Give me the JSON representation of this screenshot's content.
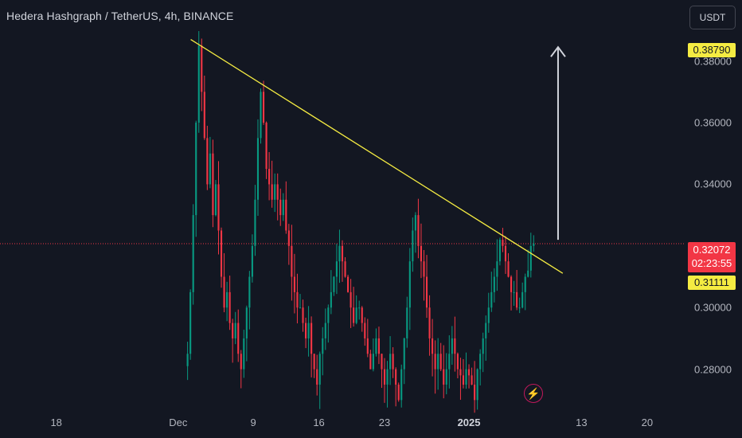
{
  "header": {
    "title": "Hedera Hashgraph / TetherUS, 4h, BINANCE",
    "currency": "USDT"
  },
  "colors": {
    "background": "#131722",
    "up": "#089981",
    "down": "#f23645",
    "trendline": "#f5ec42",
    "arrow": "#d1d4dc",
    "price_line": "#f23645"
  },
  "tags": {
    "high": "0.38790",
    "last_price": "0.32072",
    "countdown": "02:23:55",
    "trendline_value": "0.31111"
  },
  "icons": {
    "flash": "lightning-bolt-icon"
  },
  "chart_data": {
    "type": "candlestick",
    "symbol": "HBAR/USDT",
    "interval": "4h",
    "exchange": "BINANCE",
    "y_ticks": [
      "0.38000",
      "0.36000",
      "0.34000",
      "0.30000",
      "0.28000"
    ],
    "y_tick_values": [
      0.38,
      0.36,
      0.34,
      0.3,
      0.28
    ],
    "ylim": [
      0.2675,
      0.3998
    ],
    "x_ticks": [
      {
        "label": "18",
        "date": "2024-11-18",
        "bold": false
      },
      {
        "label": "Dec",
        "date": "2024-12-01",
        "bold": false
      },
      {
        "label": "9",
        "date": "2024-12-09",
        "bold": false
      },
      {
        "label": "16",
        "date": "2024-12-16",
        "bold": false
      },
      {
        "label": "23",
        "date": "2024-12-23",
        "bold": false
      },
      {
        "label": "2025",
        "date": "2025-01-01",
        "bold": true
      },
      {
        "label": "13",
        "date": "2025-01-13",
        "bold": false
      },
      {
        "label": "20",
        "date": "2025-01-20",
        "bold": false
      }
    ],
    "xlim": [
      "2024-11-12",
      "2025-01-24"
    ],
    "candles_start": "2024-12-02",
    "candle_interval_hours": 4,
    "closes": [
      0.285,
      0.305,
      0.33,
      0.36,
      0.385,
      0.37,
      0.355,
      0.34,
      0.35,
      0.33,
      0.34,
      0.325,
      0.31,
      0.3,
      0.305,
      0.295,
      0.29,
      0.295,
      0.285,
      0.28,
      0.29,
      0.3,
      0.31,
      0.32,
      0.335,
      0.355,
      0.37,
      0.36,
      0.345,
      0.34,
      0.335,
      0.34,
      0.335,
      0.33,
      0.335,
      0.325,
      0.32,
      0.31,
      0.305,
      0.3,
      0.3,
      0.295,
      0.29,
      0.295,
      0.285,
      0.28,
      0.275,
      0.285,
      0.29,
      0.295,
      0.3,
      0.305,
      0.31,
      0.315,
      0.32,
      0.315,
      0.31,
      0.305,
      0.3,
      0.295,
      0.3,
      0.3,
      0.295,
      0.29,
      0.285,
      0.28,
      0.285,
      0.29,
      0.285,
      0.28,
      0.275,
      0.28,
      0.285,
      0.28,
      0.275,
      0.27,
      0.28,
      0.29,
      0.3,
      0.315,
      0.325,
      0.33,
      0.32,
      0.315,
      0.31,
      0.3,
      0.29,
      0.285,
      0.28,
      0.285,
      0.28,
      0.275,
      0.28,
      0.285,
      0.29,
      0.285,
      0.28,
      0.278,
      0.275,
      0.28,
      0.278,
      0.275,
      0.27,
      0.28,
      0.285,
      0.29,
      0.295,
      0.3,
      0.305,
      0.31,
      0.315,
      0.322,
      0.32,
      0.315,
      0.31,
      0.305,
      0.305,
      0.3,
      0.3,
      0.305,
      0.31,
      0.312,
      0.32,
      0.32072
    ],
    "trendline": {
      "start": {
        "date": "2024-12-02T08:00",
        "price": 0.387
      },
      "end": {
        "date": "2025-01-11T00:00",
        "price": 0.31111
      }
    },
    "current_price_line": 0.32072,
    "projection_arrow": {
      "date": "2025-01-10T12:00",
      "from": 0.322,
      "to": 0.3845
    }
  }
}
